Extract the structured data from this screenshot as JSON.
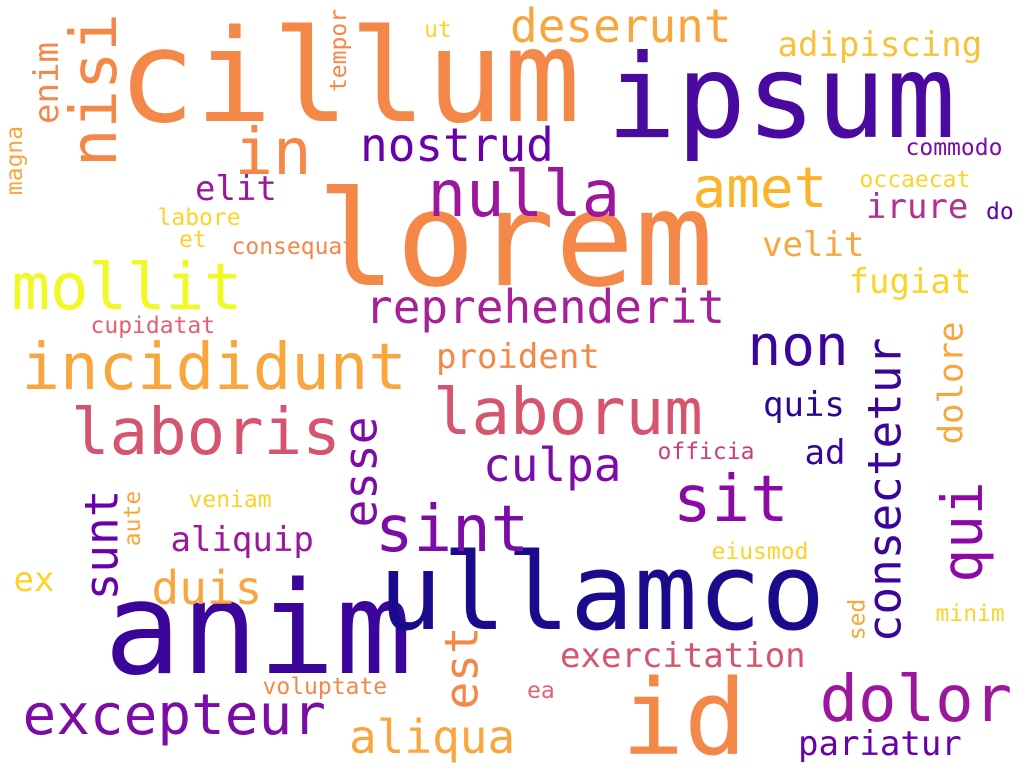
{
  "palette": {
    "deep_indigo": "#3b049a",
    "navy_indigo": "#1a0b8c",
    "purple": "#7b0ca6",
    "magenta": "#9c179e",
    "rose": "#d5546e",
    "orange": "#f48849",
    "amber": "#f8a63d",
    "gold": "#fbd42b",
    "yellow": "#f0f921"
  },
  "words": [
    {
      "text": "cillum",
      "color": "#f48849"
    },
    {
      "text": "ipsum",
      "color": "#4a0aa0"
    },
    {
      "text": "lorem",
      "color": "#f48849"
    },
    {
      "text": "anim",
      "color": "#3b049a"
    },
    {
      "text": "ullamco",
      "color": "#1a0b8c"
    },
    {
      "text": "id",
      "color": "#f48849"
    },
    {
      "text": "nisi",
      "color": "#f48849"
    },
    {
      "text": "in",
      "color": "#f48849"
    },
    {
      "text": "deserunt",
      "color": "#f8a63d"
    },
    {
      "text": "adipiscing",
      "color": "#f8c23a"
    },
    {
      "text": "nostrud",
      "color": "#6a00a8"
    },
    {
      "text": "nulla",
      "color": "#9c179e"
    },
    {
      "text": "amet",
      "color": "#fbb32a"
    },
    {
      "text": "commodo",
      "color": "#7b0ca6"
    },
    {
      "text": "occaecat",
      "color": "#fbd42b"
    },
    {
      "text": "irure",
      "color": "#b52f8c"
    },
    {
      "text": "do",
      "color": "#5c01a6"
    },
    {
      "text": "elit",
      "color": "#9c179e"
    },
    {
      "text": "velit",
      "color": "#f8a63d"
    },
    {
      "text": "mollit",
      "color": "#f0f921"
    },
    {
      "text": "fugiat",
      "color": "#fbd42b"
    },
    {
      "text": "reprehenderit",
      "color": "#a62098"
    },
    {
      "text": "incididunt",
      "color": "#f8a63d"
    },
    {
      "text": "non",
      "color": "#3b049a"
    },
    {
      "text": "proident",
      "color": "#f48849"
    },
    {
      "text": "laboris",
      "color": "#d5546e"
    },
    {
      "text": "laborum",
      "color": "#d5546e"
    },
    {
      "text": "quis",
      "color": "#2c0594"
    },
    {
      "text": "culpa",
      "color": "#7b0ca6"
    },
    {
      "text": "ad",
      "color": "#3b049a"
    },
    {
      "text": "officia",
      "color": "#c5407e"
    },
    {
      "text": "sit",
      "color": "#8b0aa5"
    },
    {
      "text": "sint",
      "color": "#7b0ca6"
    },
    {
      "text": "veniam",
      "color": "#fbd42b"
    },
    {
      "text": "aliquip",
      "color": "#9c179e"
    },
    {
      "text": "duis",
      "color": "#f8a63d"
    },
    {
      "text": "eiusmod",
      "color": "#fbd42b"
    },
    {
      "text": "ex",
      "color": "#fbd42b"
    },
    {
      "text": "exercitation",
      "color": "#d5546e"
    },
    {
      "text": "dolor",
      "color": "#9c179e"
    },
    {
      "text": "minim",
      "color": "#fbd42b"
    },
    {
      "text": "excepteur",
      "color": "#7b0ca6"
    },
    {
      "text": "voluptate",
      "color": "#f48849"
    },
    {
      "text": "ea",
      "color": "#e5606f"
    },
    {
      "text": "aliqua",
      "color": "#f8a63d"
    },
    {
      "text": "pariatur",
      "color": "#6a00a8"
    },
    {
      "text": "labore",
      "color": "#fbd42b"
    },
    {
      "text": "et",
      "color": "#fbd42b"
    },
    {
      "text": "consequat",
      "color": "#f48849"
    },
    {
      "text": "cupidatat",
      "color": "#e5606f"
    },
    {
      "text": "enim",
      "color": "#f48849"
    },
    {
      "text": "magna",
      "color": "#f8a63d"
    },
    {
      "text": "tempor",
      "color": "#f48849"
    },
    {
      "text": "ut",
      "color": "#fbd42b"
    },
    {
      "text": "esse",
      "color": "#7b0ca6"
    },
    {
      "text": "consectetur",
      "color": "#3b049a"
    },
    {
      "text": "dolore",
      "color": "#f8a63d"
    },
    {
      "text": "qui",
      "color": "#8b0aa5"
    },
    {
      "text": "est",
      "color": "#f48849"
    },
    {
      "text": "sunt",
      "color": "#6a00a8"
    },
    {
      "text": "aute",
      "color": "#f8a63d"
    },
    {
      "text": "sed",
      "color": "#f8a63d"
    }
  ]
}
